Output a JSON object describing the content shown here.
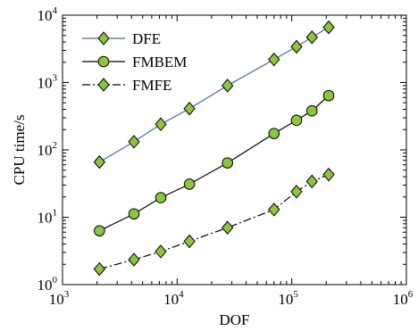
{
  "chart_data": {
    "type": "line",
    "xlabel": "DOF",
    "ylabel": "CPU time/s",
    "xscale": "log",
    "yscale": "log",
    "xlim": [
      1000,
      1000000
    ],
    "ylim": [
      1,
      10000
    ],
    "x_ticks": [
      {
        "value": 1000,
        "base": "10",
        "exp": "3"
      },
      {
        "value": 10000,
        "base": "10",
        "exp": "4"
      },
      {
        "value": 100000,
        "base": "10",
        "exp": "5"
      },
      {
        "value": 1000000,
        "base": "10",
        "exp": "6"
      }
    ],
    "y_ticks": [
      {
        "value": 1,
        "base": "10",
        "exp": "0"
      },
      {
        "value": 10,
        "base": "10",
        "exp": "1"
      },
      {
        "value": 100,
        "base": "10",
        "exp": "2"
      },
      {
        "value": 1000,
        "base": "10",
        "exp": "3"
      },
      {
        "value": 10000,
        "base": "10",
        "exp": "4"
      }
    ],
    "grid": false,
    "legend_position": "top-left",
    "series": [
      {
        "name": "DFE",
        "line_color": "#4a6aa8",
        "line_style": "solid",
        "marker": "diamond",
        "marker_color": "#8cc63f",
        "x": [
          2100,
          4200,
          7200,
          12800,
          27500,
          70000,
          110000,
          150000,
          210000
        ],
        "y": [
          66,
          132,
          240,
          410,
          900,
          2200,
          3400,
          4700,
          6600
        ]
      },
      {
        "name": "FMBEM",
        "line_color": "#000000",
        "line_style": "solid",
        "marker": "circle",
        "marker_color": "#8cc63f",
        "x": [
          2100,
          4200,
          7200,
          12800,
          27500,
          70000,
          110000,
          150000,
          210000
        ],
        "y": [
          6.3,
          11.2,
          19.5,
          31,
          64,
          175,
          275,
          380,
          640
        ]
      },
      {
        "name": "FMFE",
        "line_color": "#000000",
        "line_style": "dashdot",
        "marker": "diamond",
        "marker_color": "#8cc63f",
        "x": [
          2100,
          4200,
          7200,
          12800,
          27500,
          70000,
          110000,
          150000,
          210000
        ],
        "y": [
          1.7,
          2.35,
          3.1,
          4.4,
          7.0,
          13,
          24,
          34,
          43
        ]
      }
    ]
  }
}
